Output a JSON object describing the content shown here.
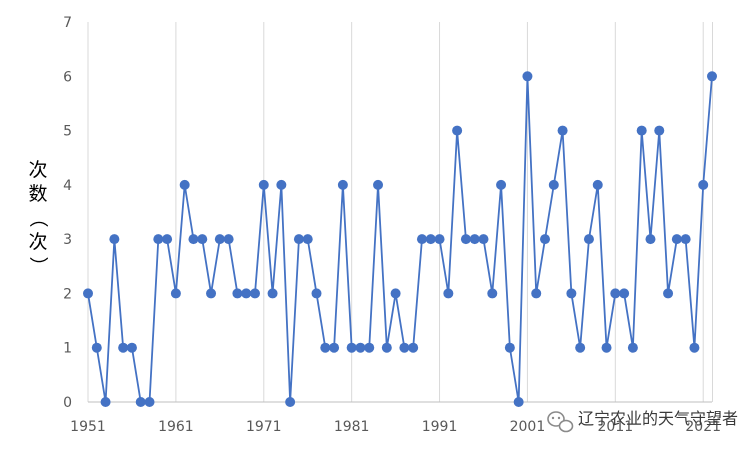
{
  "chart_data": {
    "type": "line",
    "title": "",
    "xlabel": "",
    "ylabel": "次数（次）",
    "x": [
      1951,
      1952,
      1953,
      1954,
      1955,
      1956,
      1957,
      1958,
      1959,
      1960,
      1961,
      1962,
      1963,
      1964,
      1965,
      1966,
      1967,
      1968,
      1969,
      1970,
      1971,
      1972,
      1973,
      1974,
      1975,
      1976,
      1977,
      1978,
      1979,
      1980,
      1981,
      1982,
      1983,
      1984,
      1985,
      1986,
      1987,
      1988,
      1989,
      1990,
      1991,
      1992,
      1993,
      1994,
      1995,
      1996,
      1997,
      1998,
      1999,
      2000,
      2001,
      2002,
      2003,
      2004,
      2005,
      2006,
      2007,
      2008,
      2009,
      2010,
      2011,
      2012,
      2013,
      2014,
      2015,
      2016,
      2017,
      2018,
      2019,
      2020,
      2021,
      2022
    ],
    "series": [
      {
        "values": [
          2,
          1,
          0,
          3,
          1,
          1,
          0,
          0,
          3,
          3,
          2,
          4,
          3,
          3,
          2,
          3,
          3,
          2,
          2,
          2,
          4,
          2,
          4,
          0,
          3,
          3,
          2,
          1,
          1,
          4,
          1,
          1,
          1,
          4,
          1,
          2,
          1,
          1,
          3,
          3,
          3,
          2,
          5,
          3,
          3,
          3,
          2,
          4,
          1,
          0,
          6,
          2,
          3,
          4,
          5,
          2,
          1,
          3,
          4,
          1,
          2,
          2,
          1,
          5,
          3,
          5,
          2,
          3,
          3,
          1,
          4,
          6
        ]
      }
    ],
    "xticks": [
      "1951",
      "1961",
      "1971",
      "1981",
      "1991",
      "2001",
      "2011",
      "2021"
    ],
    "yticks": [
      "0",
      "1",
      "2",
      "3",
      "4",
      "5",
      "6",
      "7"
    ],
    "ylim": [
      0,
      7
    ],
    "xlim": [
      1951,
      2022
    ],
    "grid": "vertical",
    "legend": "none",
    "colors": {
      "line": "#4472C4",
      "marker": "#4472C4",
      "grid": "#d9d9d9",
      "axis": "#bfbfbf"
    }
  },
  "watermark": {
    "text": "辽宁农业的天气守望者",
    "icon": "wechat-icon"
  }
}
